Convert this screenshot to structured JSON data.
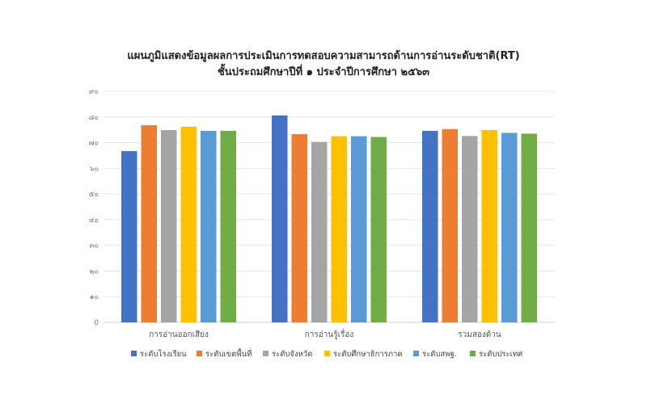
{
  "chart_data": {
    "type": "bar",
    "title": "แผนภูมิแสดงข้อมูลผลการประเมินการทดสอบความสามารถด้านการอ่านระดับชาติ(RT)",
    "subtitle": "ชั้นประถมศึกษาปีที่ ๑ ประจำปีการศึกษา ๒๕๖๓",
    "xlabel": "",
    "ylabel": "",
    "ylim": [
      0,
      90
    ],
    "yticks": [
      0,
      10,
      20,
      30,
      40,
      50,
      60,
      70,
      80,
      90
    ],
    "ytick_labels": [
      "0",
      "๑๐",
      "๒๐",
      "๓๐",
      "๔๐",
      "๕๐",
      "๖๐",
      "๗๐",
      "๘๐",
      "๙๐"
    ],
    "grid": true,
    "legend_position": "bottom",
    "categories": [
      "การอ่านออกเสียง",
      "การอ่านรู้เรื่อง",
      "รวมสองด้าน"
    ],
    "series": [
      {
        "name": "ระดับโรงเรียน",
        "color": "#4472C4",
        "values": [
          66.7,
          80.6,
          74.6
        ]
      },
      {
        "name": "ระดับเขตพื้นที่",
        "color": "#ED7D31",
        "values": [
          76.8,
          73.3,
          75.3
        ]
      },
      {
        "name": "ระดับจังหวัด",
        "color": "#A5A5A5",
        "values": [
          74.9,
          70.3,
          72.6
        ]
      },
      {
        "name": "ระดับศึกษาธิการภาค",
        "color": "#FFC000",
        "values": [
          76.2,
          72.5,
          74.9
        ]
      },
      {
        "name": "ระดับสพฐ.",
        "color": "#5B9BD5",
        "values": [
          74.6,
          72.5,
          73.8
        ]
      },
      {
        "name": "ระดับประเทศ",
        "color": "#70AD47",
        "values": [
          74.6,
          72.2,
          73.5
        ]
      }
    ]
  }
}
